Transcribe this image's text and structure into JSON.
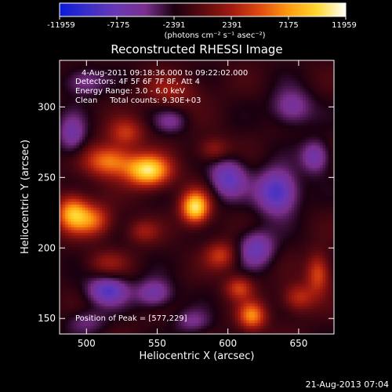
{
  "colorbar": {
    "ticks": [
      "-11959",
      "-7175",
      "-2391",
      "2391",
      "7175",
      "11959"
    ],
    "tick_values": [
      -11959,
      -7175,
      -2391,
      2391,
      7175,
      11959
    ],
    "range": [
      -11959,
      11959
    ],
    "units_label": "(photons cm⁻² s⁻¹ asec⁻²)",
    "stops": [
      "#0b1bd9",
      "#3c2ec8",
      "#6a38b4",
      "#7a2f8c",
      "#1a0010",
      "#5a0a10",
      "#a01a10",
      "#e04a10",
      "#ff9a10",
      "#ffd830",
      "#ffffff"
    ]
  },
  "chart_data": {
    "type": "heatmap",
    "title": "Reconstructed RHESSI Image",
    "xlabel": "Heliocentric X (arcsec)",
    "ylabel": "Heliocentric Y (arcsec)",
    "xlim": [
      481,
      675
    ],
    "ylim": [
      139,
      333
    ],
    "x_ticks": [
      500,
      550,
      600,
      650
    ],
    "y_ticks": [
      150,
      200,
      250,
      300
    ],
    "peak": [
      577,
      229
    ],
    "sources": [
      {
        "x": 544,
        "y": 255,
        "v": 11800,
        "sx": 11,
        "sy": 8
      },
      {
        "x": 577,
        "y": 229,
        "v": 11959,
        "sx": 7,
        "sy": 8
      },
      {
        "x": 516,
        "y": 262,
        "v": 8200,
        "sx": 12,
        "sy": 8
      },
      {
        "x": 490,
        "y": 225,
        "v": 9200,
        "sx": 8,
        "sy": 9
      },
      {
        "x": 505,
        "y": 220,
        "v": 6500,
        "sx": 9,
        "sy": 8
      },
      {
        "x": 528,
        "y": 282,
        "v": 5000,
        "sx": 9,
        "sy": 7
      },
      {
        "x": 560,
        "y": 312,
        "v": 3500,
        "sx": 14,
        "sy": 8
      },
      {
        "x": 590,
        "y": 270,
        "v": 3800,
        "sx": 8,
        "sy": 6
      },
      {
        "x": 540,
        "y": 212,
        "v": 3500,
        "sx": 8,
        "sy": 6
      },
      {
        "x": 515,
        "y": 190,
        "v": 3000,
        "sx": 10,
        "sy": 6
      },
      {
        "x": 595,
        "y": 195,
        "v": 5200,
        "sx": 8,
        "sy": 7
      },
      {
        "x": 617,
        "y": 152,
        "v": 8000,
        "sx": 7,
        "sy": 7
      },
      {
        "x": 608,
        "y": 172,
        "v": 5500,
        "sx": 7,
        "sy": 6
      },
      {
        "x": 650,
        "y": 165,
        "v": 5000,
        "sx": 8,
        "sy": 7
      },
      {
        "x": 664,
        "y": 182,
        "v": 6200,
        "sx": 6,
        "sy": 10
      },
      {
        "x": 600,
        "y": 250,
        "v": -6000,
        "sx": 9,
        "sy": 10
      },
      {
        "x": 635,
        "y": 240,
        "v": -7800,
        "sx": 10,
        "sy": 11
      },
      {
        "x": 662,
        "y": 265,
        "v": -5200,
        "sx": 7,
        "sy": 8
      },
      {
        "x": 645,
        "y": 300,
        "v": -4500,
        "sx": 10,
        "sy": 9
      },
      {
        "x": 620,
        "y": 200,
        "v": -5500,
        "sx": 9,
        "sy": 9
      },
      {
        "x": 515,
        "y": 170,
        "v": -6500,
        "sx": 10,
        "sy": 7
      },
      {
        "x": 548,
        "y": 168,
        "v": -5000,
        "sx": 9,
        "sy": 7
      },
      {
        "x": 490,
        "y": 280,
        "v": -4500,
        "sx": 7,
        "sy": 10
      },
      {
        "x": 498,
        "y": 318,
        "v": -3800,
        "sx": 10,
        "sy": 7
      },
      {
        "x": 560,
        "y": 290,
        "v": -3000,
        "sx": 8,
        "sy": 6
      },
      {
        "x": 575,
        "y": 148,
        "v": -3200,
        "sx": 9,
        "sy": 6
      },
      {
        "x": 500,
        "y": 148,
        "v": -2800,
        "sx": 10,
        "sy": 6
      }
    ]
  },
  "annotations": {
    "time_range": "4-Aug-2011 09:18:36.000 to 09:22:02.000",
    "detectors": "Detectors: 4F 5F 6F 7F 8F, Att 4",
    "energy_range": "Energy Range: 3.0 - 6.0 keV",
    "algorithm_counts": "Clean     Total counts: 9.30E+03",
    "peak_position": "Position of Peak = [577,229]"
  },
  "footer": {
    "timestamp": "21-Aug-2013 07:04"
  }
}
